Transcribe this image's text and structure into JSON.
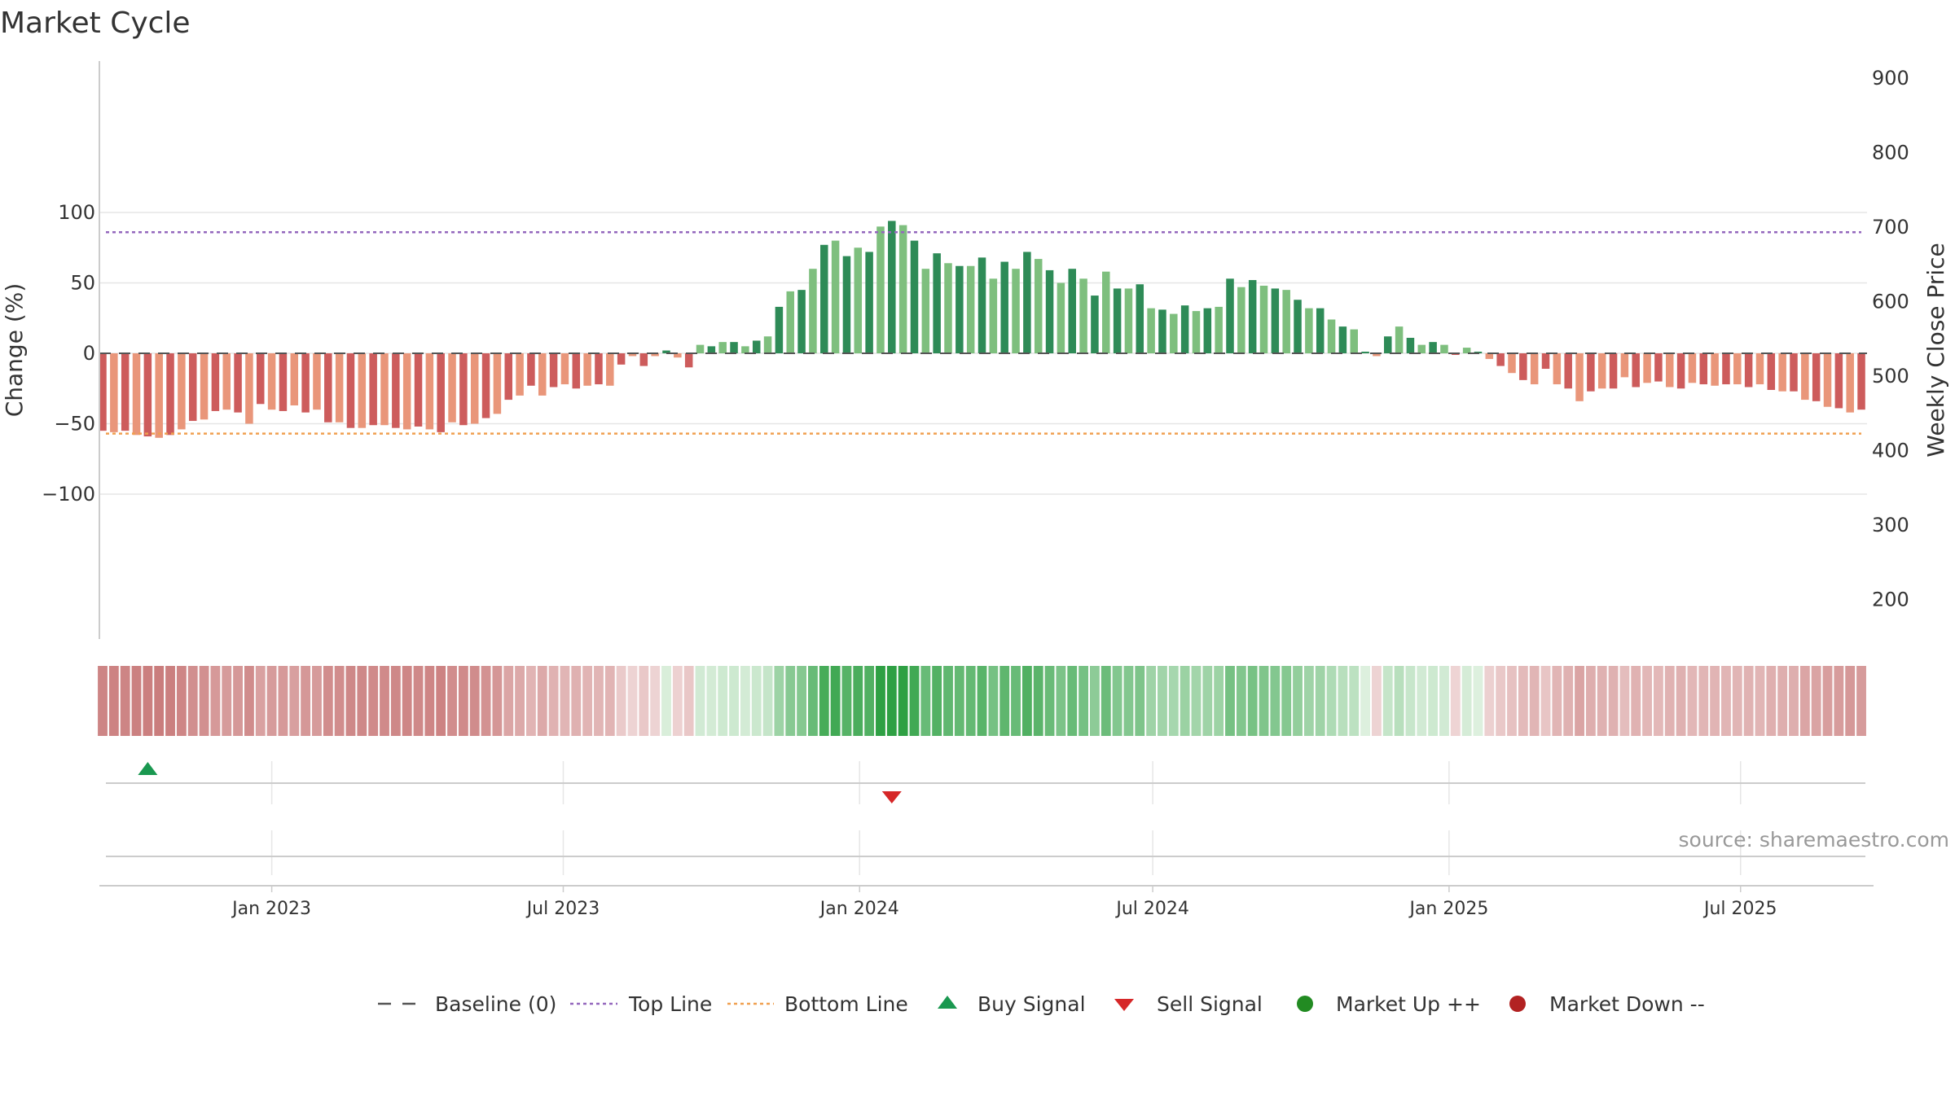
{
  "chart_data": {
    "type": "bar",
    "title": "Market Cycle",
    "ylabel": "Change (%)",
    "y2label": "Weekly Close Price",
    "ylim": [
      -100,
      100
    ],
    "y2lim": [
      155,
      920
    ],
    "yticks": [
      "100",
      "50",
      "0",
      "−50",
      "−100"
    ],
    "y2ticks": [
      "900",
      "800",
      "700",
      "600",
      "500",
      "400",
      "300",
      "200"
    ],
    "top_line": 86,
    "bottom_line": -57,
    "x_start_date": "2022-09-18",
    "week_days": 7,
    "x_ticks": [
      "Jan 2023",
      "Jul 2023",
      "Jan 2024",
      "Jul 2024",
      "Jan 2025",
      "Jul 2025"
    ],
    "values": [
      -55,
      -56,
      -55,
      -58,
      -59,
      -60,
      -58,
      -54,
      -48,
      -47,
      -41,
      -40,
      -42,
      -50,
      -36,
      -40,
      -41,
      -37,
      -42,
      -40,
      -49,
      -49,
      -53,
      -53,
      -51,
      -51,
      -53,
      -54,
      -52,
      -54,
      -56,
      -49,
      -51,
      -50,
      -46,
      -43,
      -33,
      -30,
      -23,
      -30,
      -24,
      -22,
      -25,
      -23,
      -22,
      -23,
      -8,
      -2,
      -9,
      -2,
      2,
      -3,
      -10,
      6,
      5,
      8,
      8,
      5,
      9,
      12,
      33,
      44,
      45,
      60,
      77,
      80,
      69,
      75,
      72,
      90,
      94,
      91,
      80,
      60,
      71,
      64,
      62,
      62,
      68,
      53,
      65,
      60,
      72,
      67,
      59,
      50,
      60,
      53,
      41,
      58,
      46,
      46,
      49,
      32,
      31,
      28,
      34,
      30,
      32,
      33,
      53,
      47,
      52,
      48,
      46,
      45,
      38,
      32,
      32,
      24,
      19,
      17,
      0,
      -2,
      12,
      19,
      11,
      6,
      8,
      6,
      -1,
      4,
      0,
      -4,
      -9,
      -14,
      -19,
      -22,
      -11,
      -22,
      -25,
      -34,
      -27,
      -25,
      -25,
      -17,
      -24,
      -21,
      -20,
      -24,
      -25,
      -21,
      -22,
      -23,
      -22,
      -22,
      -24,
      -22,
      -26,
      -27,
      -27,
      -33,
      -34,
      -38,
      -39,
      -42,
      -40
    ],
    "buy_signals": [
      "2022-10-16"
    ],
    "sell_signals": [
      "2024-01-21"
    ],
    "legend": [
      {
        "label": "Baseline (0)",
        "icon": "dash-line"
      },
      {
        "label": "Top Line",
        "icon": "dotted-line-purple"
      },
      {
        "label": "Bottom Line",
        "icon": "dotted-line-orange"
      },
      {
        "label": "Buy Signal",
        "icon": "triangle-up-green"
      },
      {
        "label": "Sell Signal",
        "icon": "triangle-down-red"
      },
      {
        "label": "Market Up ++",
        "icon": "circle-green"
      },
      {
        "label": "Market Down --",
        "icon": "circle-red"
      }
    ],
    "source": "source: sharemaestro.com",
    "colors": {
      "up_strong": "#2e8b57",
      "up_weak": "#7ebf7e",
      "down_strong": "#cd5c5c",
      "down_weak": "#e9967a",
      "top_line": "#9467bd",
      "bottom_line": "#f0a050",
      "buy": "#1a9850",
      "sell": "#d62728",
      "legend_up": "#228b22",
      "legend_down": "#b22222",
      "grid": "#e6e6e6",
      "axis": "#cccccc"
    }
  }
}
